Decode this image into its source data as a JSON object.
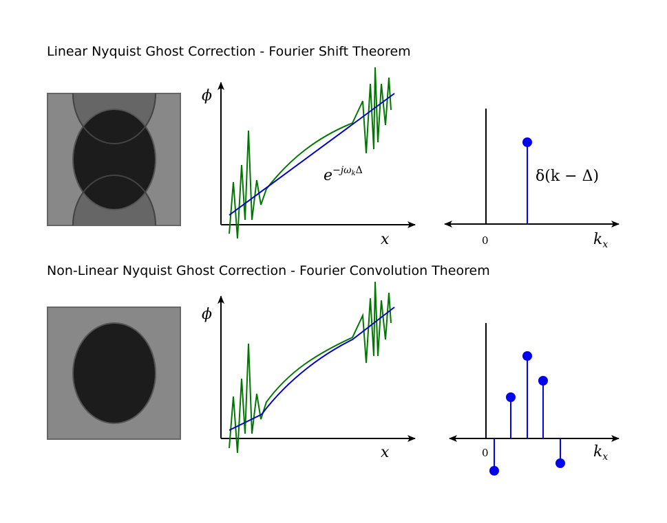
{
  "rows": [
    {
      "title": "Linear Nyquist Ghost Correction - Fourier Shift Theorem",
      "phase_plot": {
        "y_label": "ϕ",
        "x_label": "x",
        "annotation_base": "e",
        "annotation_sup": "−jω",
        "annotation_sub": "k",
        "annotation_tail": "Δ"
      },
      "spectrum_plot": {
        "x_label": "k",
        "x_label_sub": "x",
        "zero_label": "0",
        "annotation": "δ(k − Δ)"
      }
    },
    {
      "title": "Non-Linear Nyquist Ghost Correction - Fourier Convolution Theorem",
      "phase_plot": {
        "y_label": "ϕ",
        "x_label": "x"
      },
      "spectrum_plot": {
        "x_label": "k",
        "x_label_sub": "x",
        "zero_label": "0"
      }
    }
  ],
  "colors": {
    "phase_fit": "#0000cc",
    "phase_measured": "#007700",
    "impulse": "#0000ee",
    "image_bg": "#888888",
    "image_object": "#1c1c1c"
  }
}
